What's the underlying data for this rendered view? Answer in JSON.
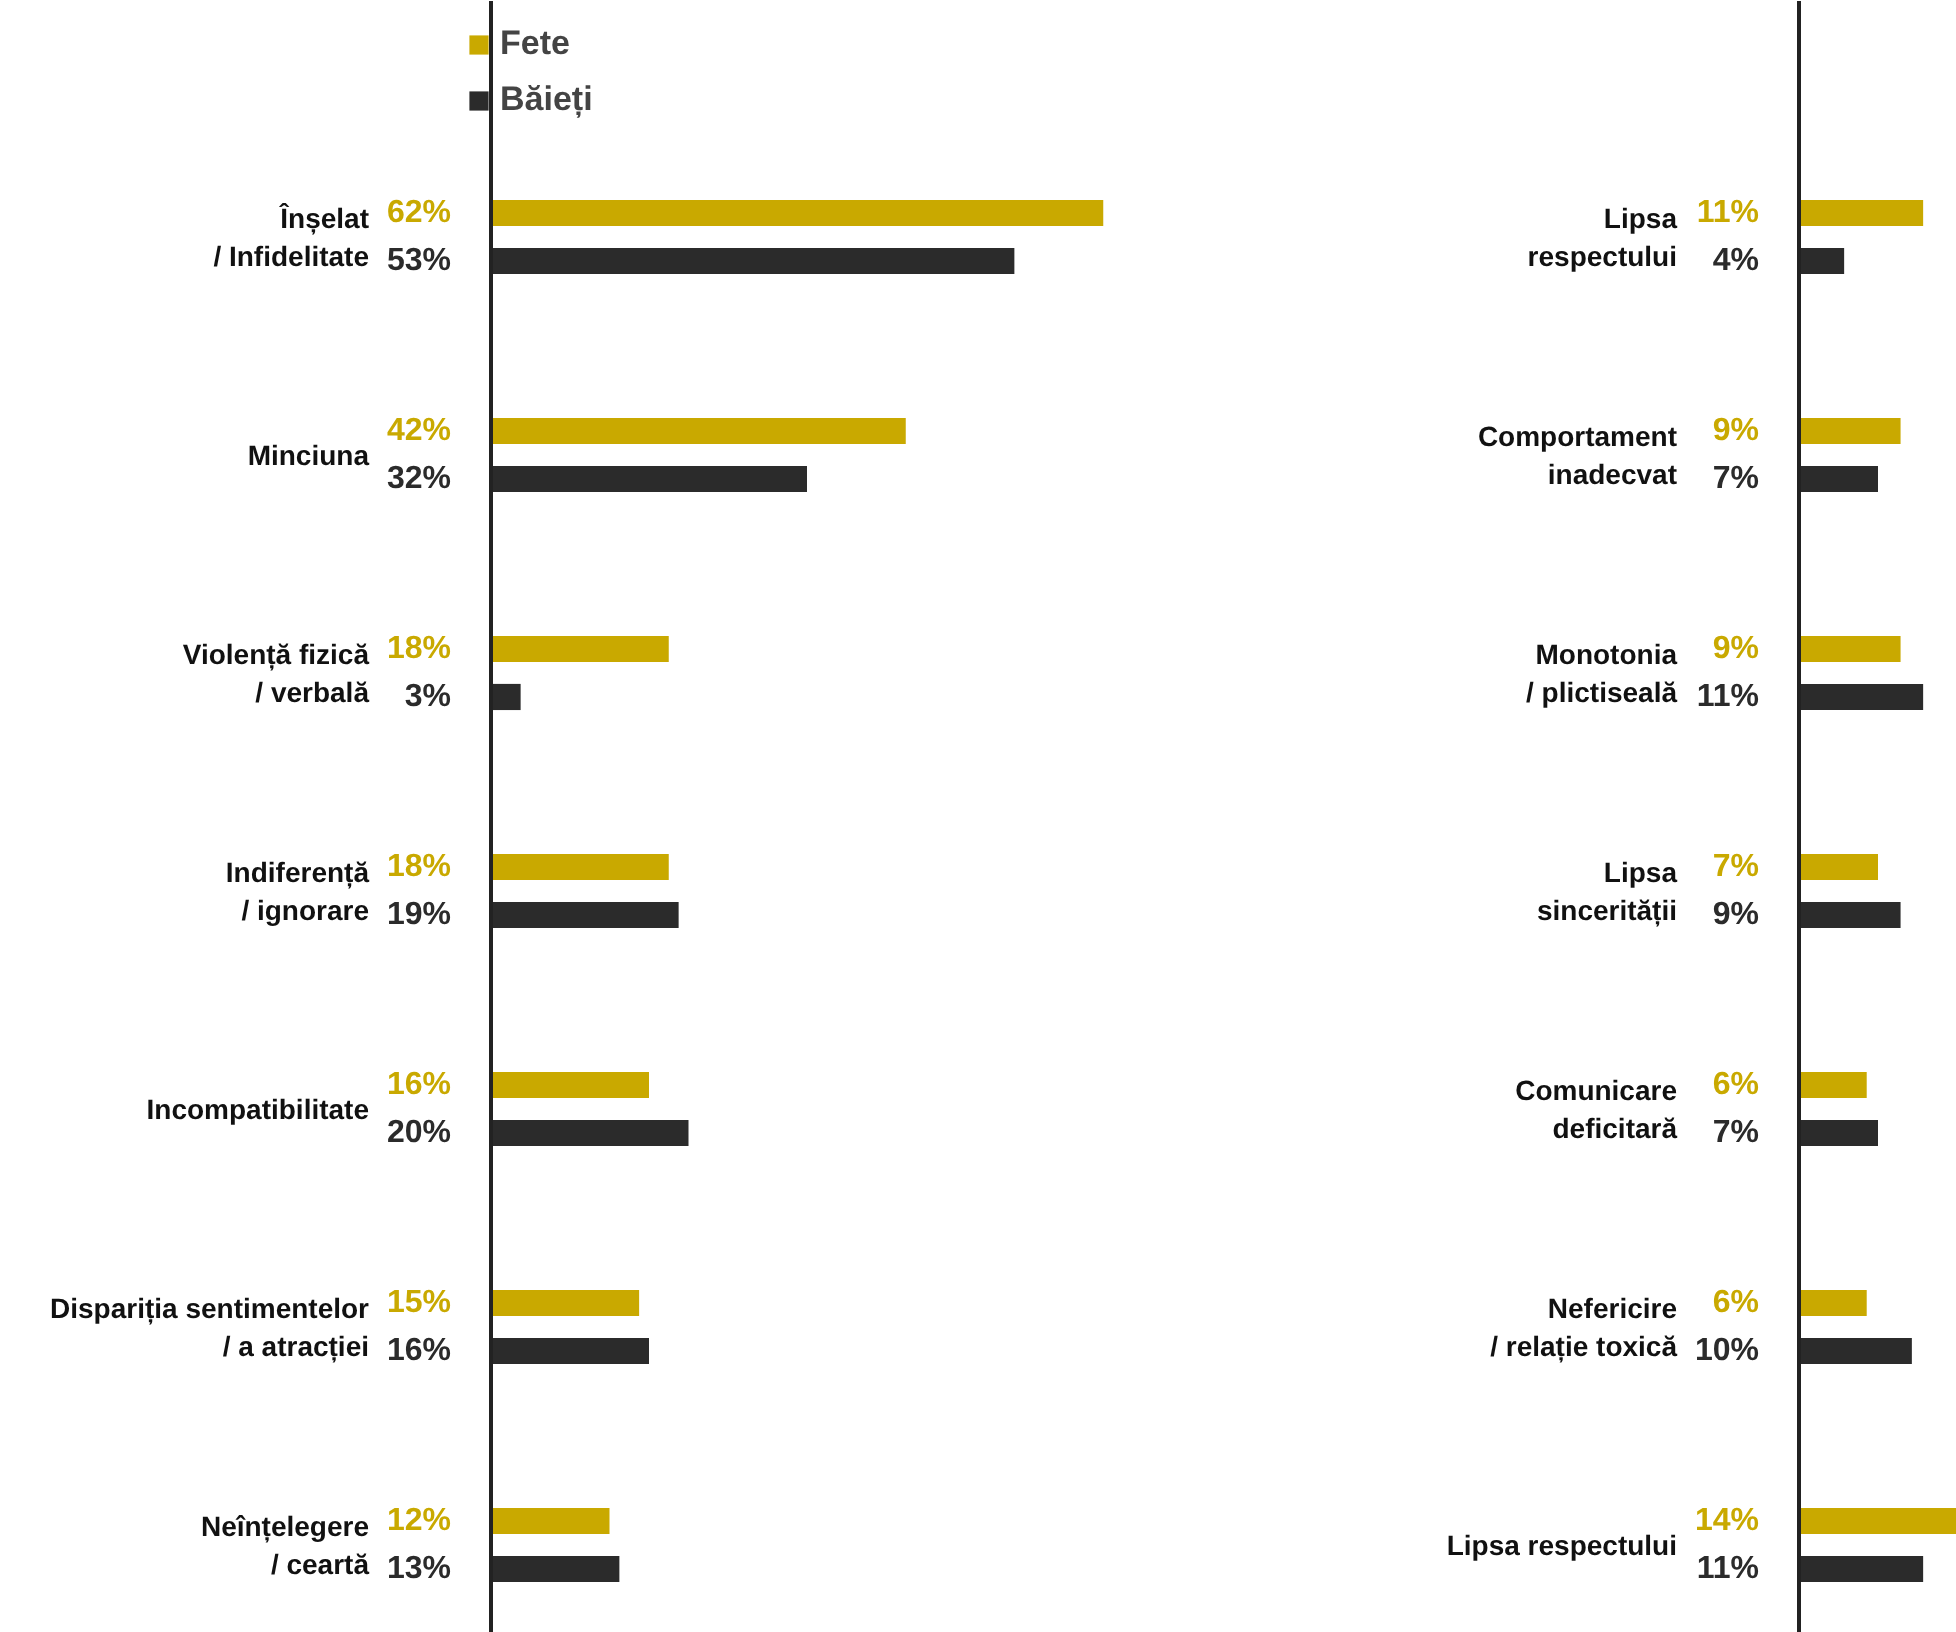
{
  "chart_data": [
    {
      "type": "bar",
      "orientation": "horizontal",
      "categories": [
        "Înșelat\n/ Infidelitate",
        "Minciuna",
        "Violență fizică\n/ verbală",
        "Indiferență\n/ ignorare",
        "Incompatibilitate",
        "Dispariția sentimentelor\n/ a atracției",
        "Neînțelegere\n/ ceartă"
      ],
      "xlim": [
        0,
        80
      ],
      "tick_labels": "y",
      "grid": false,
      "legend": "top",
      "series": [
        {
          "name": "Fete",
          "color": "#c9a900",
          "values": [
            62,
            42,
            18,
            18,
            16,
            15,
            12
          ],
          "value_labels": [
            "62%",
            "42%",
            "18%",
            "18%",
            "16%",
            "15%",
            "12%"
          ]
        },
        {
          "name": "Băieți",
          "color": "#2b2b2b",
          "values": [
            53,
            32,
            3,
            19,
            20,
            16,
            13
          ],
          "value_labels": [
            "53%",
            "32%",
            "3%",
            "19%",
            "20%",
            "16%",
            "13%"
          ]
        }
      ]
    },
    {
      "type": "bar",
      "orientation": "horizontal",
      "categories": [
        "Lipsa\nrespectului",
        "Comportament\ninadecvat",
        "Monotonia\n/ plictiseală",
        "Lipsa\nsincerității",
        "Comunicare\ndeficitară",
        "Nefericire\n/ relație toxică",
        "Lipsa respectului"
      ],
      "xlim": [
        0,
        14
      ],
      "tick_labels": "y",
      "grid": false,
      "series": [
        {
          "color": "#c9a900",
          "values": [
            11,
            9,
            9,
            7,
            6,
            6,
            14
          ],
          "value_labels": [
            "11%",
            "9%",
            "9%",
            "7%",
            "6%",
            "6%",
            "14%"
          ]
        },
        {
          "color": "#2b2b2b",
          "values": [
            4,
            7,
            11,
            9,
            7,
            10,
            11
          ],
          "value_labels": [
            "4%",
            "7%",
            "11%",
            "9%",
            "7%",
            "10%",
            "11%"
          ]
        }
      ]
    }
  ]
}
